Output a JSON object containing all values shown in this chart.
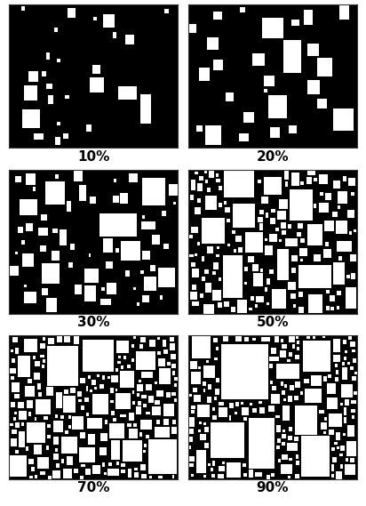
{
  "panels": [
    {
      "label": "10%",
      "pct": 10,
      "seed": 42
    },
    {
      "label": "20%",
      "pct": 20,
      "seed": 137
    },
    {
      "label": "30%",
      "pct": 30,
      "seed": 73
    },
    {
      "label": "50%",
      "pct": 50,
      "seed": 99
    },
    {
      "label": "70%",
      "pct": 70,
      "seed": 256
    },
    {
      "label": "90%",
      "pct": 90,
      "seed": 512
    }
  ],
  "bg_color": "#000000",
  "square_color": "#ffffff",
  "label_fontsize": 11,
  "label_fontweight": "bold",
  "fig_bg": "#ffffff",
  "figsize": [
    4.12,
    5.69
  ],
  "dpi": 100
}
